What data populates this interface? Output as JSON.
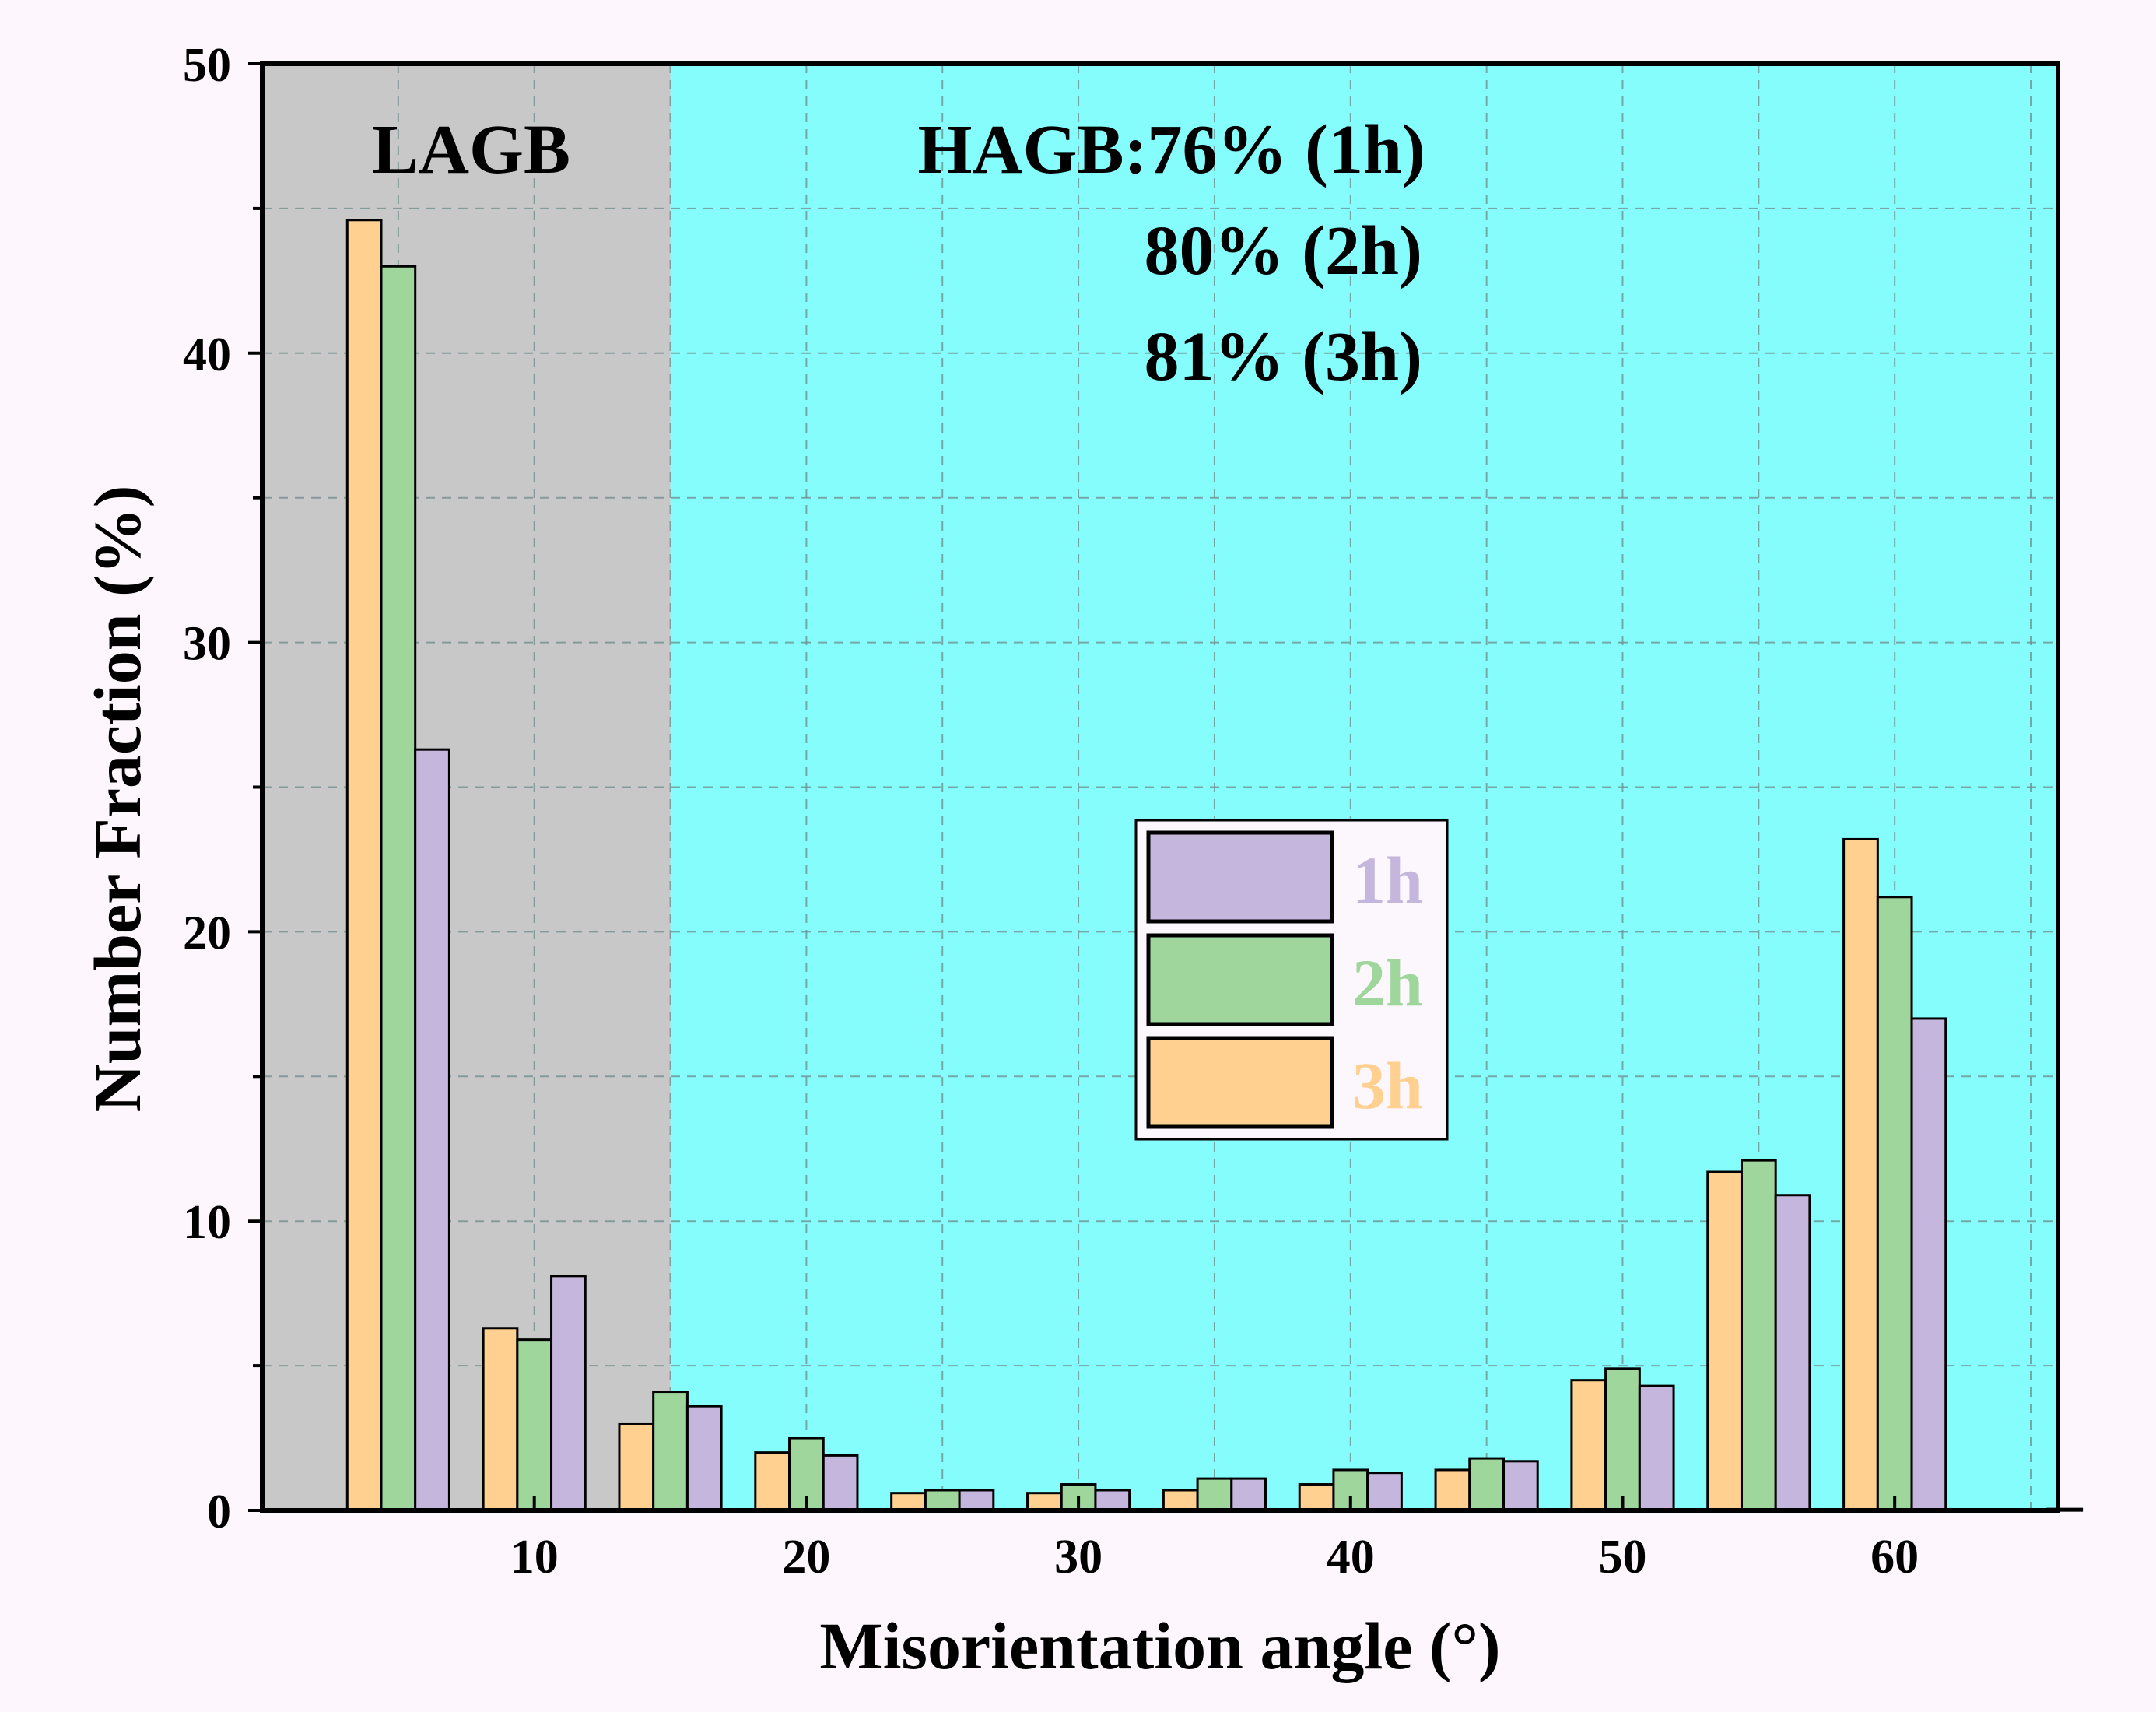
{
  "chart_data": {
    "type": "bar",
    "title": "",
    "xlabel": "Misorientation angle (°)",
    "ylabel": "Number Fraction (%)",
    "xlim": [
      0,
      66
    ],
    "ylim": [
      0,
      50
    ],
    "xticks": [
      10,
      20,
      30,
      40,
      50,
      60
    ],
    "yticks": [
      0,
      10,
      20,
      30,
      40,
      50
    ],
    "grid": true,
    "bin_width": 5,
    "categories": [
      "0-5",
      "5-10",
      "10-15",
      "15-20",
      "20-25",
      "25-30",
      "30-35",
      "35-40",
      "40-45",
      "45-50",
      "50-55",
      "55-60",
      "60-65"
    ],
    "bin_centers": [
      5,
      10,
      15,
      20,
      25,
      30,
      35,
      40,
      45,
      50,
      55,
      60,
      65
    ],
    "series": [
      {
        "name": "3h",
        "color": "#ffd08f",
        "values": [
          44.6,
          6.3,
          3.0,
          2.0,
          0.6,
          0.6,
          0.7,
          0.9,
          1.4,
          4.5,
          11.7,
          23.2,
          0.0
        ]
      },
      {
        "name": "2h",
        "color": "#9ed69c",
        "values": [
          43.0,
          5.9,
          4.1,
          2.5,
          0.7,
          0.9,
          1.1,
          1.4,
          1.8,
          4.9,
          12.1,
          21.2,
          0.0
        ]
      },
      {
        "name": "1h",
        "color": "#c4b6dc",
        "values": [
          26.3,
          8.1,
          3.6,
          1.9,
          0.7,
          0.7,
          1.1,
          1.3,
          1.7,
          4.3,
          10.9,
          17.0,
          0.05
        ]
      }
    ],
    "regions": [
      {
        "name": "LAGB",
        "range": [
          0,
          15
        ],
        "color": "#c8c8c8"
      },
      {
        "name": "HAGB",
        "range": [
          15,
          66
        ],
        "color": "#86fdfd"
      }
    ],
    "annotations": [
      "LAGB",
      "HAGB:76% (1h)",
      "80% (2h)",
      "81% (3h)"
    ],
    "legend": {
      "placement": "center-right",
      "order": [
        "1h",
        "2h",
        "3h"
      ]
    }
  }
}
